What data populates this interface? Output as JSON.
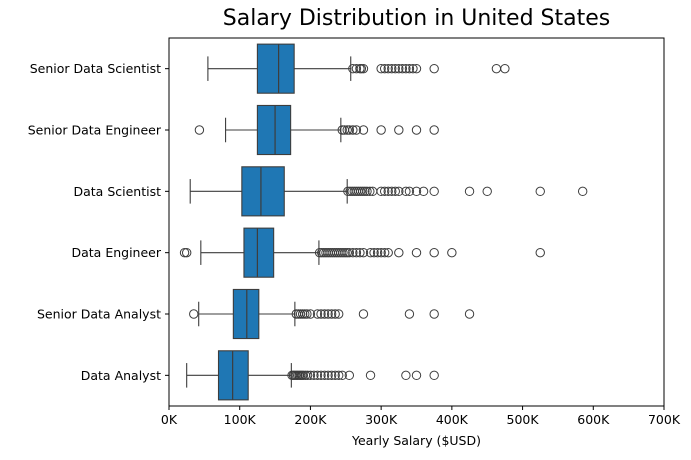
{
  "chart_data": {
    "type": "box",
    "title": "Salary Distribution in United States",
    "xlabel": "Yearly Salary ($USD)",
    "ylabel": "",
    "xlim": [
      0,
      700000
    ],
    "x_ticks": [
      0,
      100000,
      200000,
      300000,
      400000,
      500000,
      600000,
      700000
    ],
    "x_tick_labels": [
      "0K",
      "100K",
      "200K",
      "300K",
      "400K",
      "500K",
      "600K",
      "700K"
    ],
    "grid": false,
    "color": "#1f77b4",
    "categories": [
      "Senior Data Scientist",
      "Senior Data Engineer",
      "Data Scientist",
      "Data Engineer",
      "Senior Data Analyst",
      "Data Analyst"
    ],
    "boxes": [
      {
        "category": "Senior Data Scientist",
        "whisker_low": 55000,
        "q1": 125000,
        "median": 155000,
        "q3": 177000,
        "whisker_high": 257000,
        "outliers": [
          260000,
          265000,
          270000,
          272000,
          275000,
          300000,
          305000,
          310000,
          315000,
          320000,
          325000,
          330000,
          335000,
          340000,
          345000,
          350000,
          375000,
          463000,
          475000
        ]
      },
      {
        "category": "Senior Data Engineer",
        "whisker_low": 80000,
        "q1": 125000,
        "median": 150000,
        "q3": 172000,
        "whisker_high": 243000,
        "outliers": [
          43000,
          245000,
          248000,
          252000,
          255000,
          260000,
          265000,
          275000,
          300000,
          325000,
          350000,
          375000
        ]
      },
      {
        "category": "Data Scientist",
        "whisker_low": 30000,
        "q1": 103000,
        "median": 130000,
        "q3": 163000,
        "whisker_high": 252000,
        "outliers": [
          253000,
          256000,
          259000,
          262000,
          265000,
          268000,
          271000,
          274000,
          277000,
          280000,
          284000,
          288000,
          300000,
          305000,
          310000,
          315000,
          320000,
          325000,
          335000,
          340000,
          350000,
          360000,
          375000,
          425000,
          450000,
          525000,
          585000
        ]
      },
      {
        "category": "Data Engineer",
        "whisker_low": 45000,
        "q1": 106000,
        "median": 125000,
        "q3": 148000,
        "whisker_high": 212000,
        "outliers": [
          22000,
          25000,
          213000,
          216000,
          219000,
          222000,
          225000,
          228000,
          231000,
          234000,
          237000,
          240000,
          243000,
          246000,
          249000,
          252000,
          255000,
          260000,
          265000,
          270000,
          275000,
          285000,
          290000,
          295000,
          300000,
          305000,
          310000,
          325000,
          350000,
          375000,
          400000,
          525000
        ]
      },
      {
        "category": "Senior Data Analyst",
        "whisker_low": 42000,
        "q1": 91000,
        "median": 110000,
        "q3": 127000,
        "whisker_high": 178000,
        "outliers": [
          35000,
          180000,
          183000,
          186000,
          189000,
          192000,
          195000,
          200000,
          210000,
          215000,
          220000,
          225000,
          230000,
          235000,
          240000,
          275000,
          340000,
          375000,
          425000
        ]
      },
      {
        "category": "Data Analyst",
        "whisker_low": 25000,
        "q1": 70000,
        "median": 90000,
        "q3": 112000,
        "whisker_high": 173000,
        "outliers": [
          174000,
          176000,
          178000,
          180000,
          182000,
          184000,
          186000,
          188000,
          190000,
          193000,
          196000,
          200000,
          205000,
          210000,
          215000,
          220000,
          225000,
          230000,
          235000,
          240000,
          245000,
          255000,
          285000,
          335000,
          350000,
          375000
        ]
      }
    ]
  }
}
